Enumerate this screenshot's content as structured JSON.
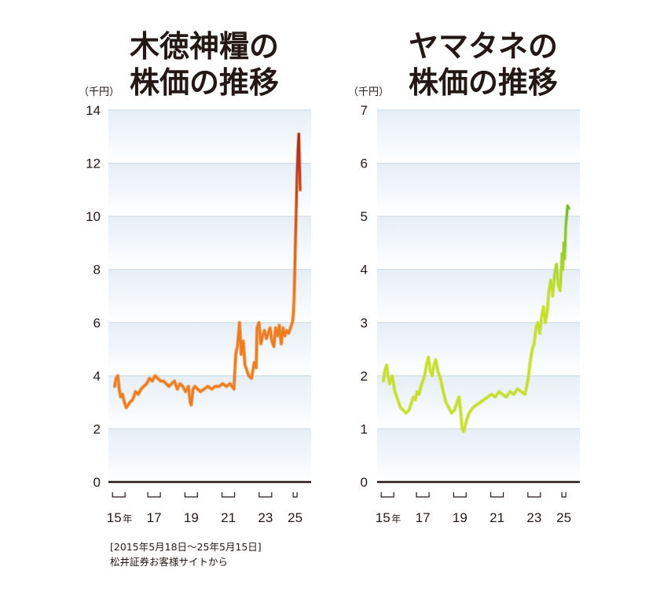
{
  "chart_data": [
    {
      "type": "line",
      "title_lines": [
        "木徳神糧の",
        "株価の推移"
      ],
      "unit_label": "（千円）",
      "ylim": [
        0,
        14
      ],
      "yticks": [
        "0",
        "2",
        "4",
        "6",
        "8",
        "10",
        "12",
        "14"
      ],
      "xticks": [
        {
          "label": "15",
          "suffix": "年",
          "year": 2015.6
        },
        {
          "label": "17",
          "suffix": "",
          "year": 2017.5
        },
        {
          "label": "19",
          "suffix": "",
          "year": 2019.5
        },
        {
          "label": "21",
          "suffix": "",
          "year": 2021.5
        },
        {
          "label": "23",
          "suffix": "",
          "year": 2023.5
        },
        {
          "label": "25",
          "suffix": "",
          "year": 2025.1
        }
      ],
      "xlim": [
        2015.38,
        2025.37
      ],
      "colors": {
        "line": "#ee7d1f",
        "end": "#a8262a"
      },
      "series": [
        {
          "x": [
            2015.38,
            2015.45,
            2015.55,
            2015.62,
            2015.7,
            2015.8,
            2015.9,
            2016.0,
            2016.1,
            2016.2,
            2016.35,
            2016.5,
            2016.65,
            2016.8,
            2016.95,
            2017.1,
            2017.25,
            2017.4,
            2017.55,
            2017.7,
            2017.85,
            2018.0,
            2018.15,
            2018.3,
            2018.45,
            2018.6,
            2018.75,
            2018.9,
            2019.05,
            2019.2,
            2019.35,
            2019.45,
            2019.5,
            2019.6,
            2019.7,
            2019.85,
            2020.0,
            2020.2,
            2020.4,
            2020.6,
            2020.8,
            2021.0,
            2021.2,
            2021.4,
            2021.6,
            2021.8,
            2021.9,
            2021.95,
            2022.0,
            2022.1,
            2022.2,
            2022.3,
            2022.4,
            2022.5,
            2022.6,
            2022.75,
            2022.9,
            2023.0,
            2023.05,
            2023.15,
            2023.25,
            2023.35,
            2023.45,
            2023.55,
            2023.65,
            2023.75,
            2023.85,
            2023.95,
            2024.05,
            2024.15,
            2024.25,
            2024.35,
            2024.45,
            2024.55,
            2024.65,
            2024.75,
            2024.85,
            2024.95,
            2025.0,
            2025.05,
            2025.1,
            2025.15,
            2025.2,
            2025.25,
            2025.3,
            2025.37
          ],
          "y": [
            3.6,
            3.9,
            4.0,
            3.5,
            3.2,
            3.3,
            3.0,
            2.8,
            2.9,
            3.0,
            3.1,
            3.4,
            3.3,
            3.5,
            3.6,
            3.7,
            3.9,
            3.8,
            4.0,
            3.9,
            3.8,
            3.8,
            3.7,
            3.6,
            3.7,
            3.8,
            3.5,
            3.7,
            3.6,
            3.4,
            3.6,
            3.0,
            2.9,
            3.5,
            3.6,
            3.5,
            3.4,
            3.5,
            3.6,
            3.5,
            3.6,
            3.6,
            3.7,
            3.6,
            3.7,
            3.5,
            4.8,
            5.0,
            5.1,
            6.0,
            4.8,
            5.3,
            4.4,
            4.2,
            4.0,
            3.9,
            4.5,
            4.3,
            5.8,
            6.0,
            5.2,
            5.5,
            5.7,
            5.4,
            5.6,
            5.8,
            5.3,
            5.1,
            5.8,
            5.5,
            5.9,
            5.2,
            5.8,
            5.5,
            5.7,
            5.6,
            5.8,
            6.0,
            6.3,
            7.0,
            8.5,
            10.0,
            11.5,
            12.5,
            13.1,
            11.0
          ]
        }
      ]
    },
    {
      "type": "line",
      "title_lines": [
        "ヤマタネの",
        "株価の推移"
      ],
      "unit_label": "（千円）",
      "ylim": [
        0,
        7
      ],
      "yticks": [
        "0",
        "1",
        "2",
        "3",
        "4",
        "5",
        "6",
        "7"
      ],
      "xticks": [
        {
          "label": "15",
          "suffix": "年",
          "year": 2015.6
        },
        {
          "label": "17",
          "suffix": "",
          "year": 2017.5
        },
        {
          "label": "19",
          "suffix": "",
          "year": 2019.5
        },
        {
          "label": "21",
          "suffix": "",
          "year": 2021.5
        },
        {
          "label": "23",
          "suffix": "",
          "year": 2023.5
        },
        {
          "label": "25",
          "suffix": "",
          "year": 2025.1
        }
      ],
      "xlim": [
        2015.38,
        2025.37
      ],
      "colors": {
        "line": "#c6df2f",
        "end": "#1f9b4a"
      },
      "series": [
        {
          "x": [
            2015.38,
            2015.45,
            2015.55,
            2015.62,
            2015.72,
            2015.85,
            2016.0,
            2016.15,
            2016.3,
            2016.45,
            2016.6,
            2016.75,
            2016.9,
            2017.0,
            2017.1,
            2017.2,
            2017.3,
            2017.4,
            2017.5,
            2017.6,
            2017.7,
            2017.8,
            2017.9,
            2018.0,
            2018.1,
            2018.2,
            2018.3,
            2018.45,
            2018.6,
            2018.75,
            2018.9,
            2019.05,
            2019.2,
            2019.35,
            2019.45,
            2019.55,
            2019.62,
            2019.7,
            2019.85,
            2020.0,
            2020.2,
            2020.4,
            2020.6,
            2020.8,
            2021.0,
            2021.2,
            2021.4,
            2021.6,
            2021.8,
            2022.0,
            2022.2,
            2022.4,
            2022.6,
            2022.8,
            2023.0,
            2023.1,
            2023.2,
            2023.3,
            2023.4,
            2023.5,
            2023.6,
            2023.7,
            2023.8,
            2023.9,
            2024.0,
            2024.1,
            2024.2,
            2024.3,
            2024.4,
            2024.5,
            2024.6,
            2024.7,
            2024.8,
            2024.9,
            2025.0,
            2025.05,
            2025.1,
            2025.15,
            2025.2,
            2025.25,
            2025.3,
            2025.37
          ],
          "y": [
            1.9,
            2.1,
            2.2,
            2.0,
            1.85,
            2.0,
            1.7,
            1.55,
            1.4,
            1.35,
            1.3,
            1.35,
            1.5,
            1.6,
            1.55,
            1.7,
            1.65,
            1.8,
            1.9,
            2.0,
            2.2,
            2.35,
            2.1,
            2.0,
            2.2,
            2.3,
            2.1,
            1.95,
            1.7,
            1.5,
            1.4,
            1.3,
            1.35,
            1.5,
            1.6,
            1.3,
            1.0,
            0.95,
            1.15,
            1.3,
            1.4,
            1.45,
            1.5,
            1.55,
            1.6,
            1.65,
            1.6,
            1.7,
            1.65,
            1.6,
            1.7,
            1.65,
            1.75,
            1.7,
            1.65,
            1.8,
            2.0,
            2.3,
            2.5,
            2.6,
            2.9,
            3.0,
            2.8,
            3.1,
            3.3,
            3.0,
            3.2,
            3.6,
            3.8,
            3.5,
            3.9,
            4.1,
            3.7,
            3.6,
            4.3,
            4.0,
            4.5,
            4.2,
            4.8,
            5.0,
            5.2,
            5.15
          ]
        }
      ]
    }
  ],
  "note": {
    "period": "[2015年5月18日〜25年5月15日]",
    "source": "松井証券お客様サイトから"
  }
}
